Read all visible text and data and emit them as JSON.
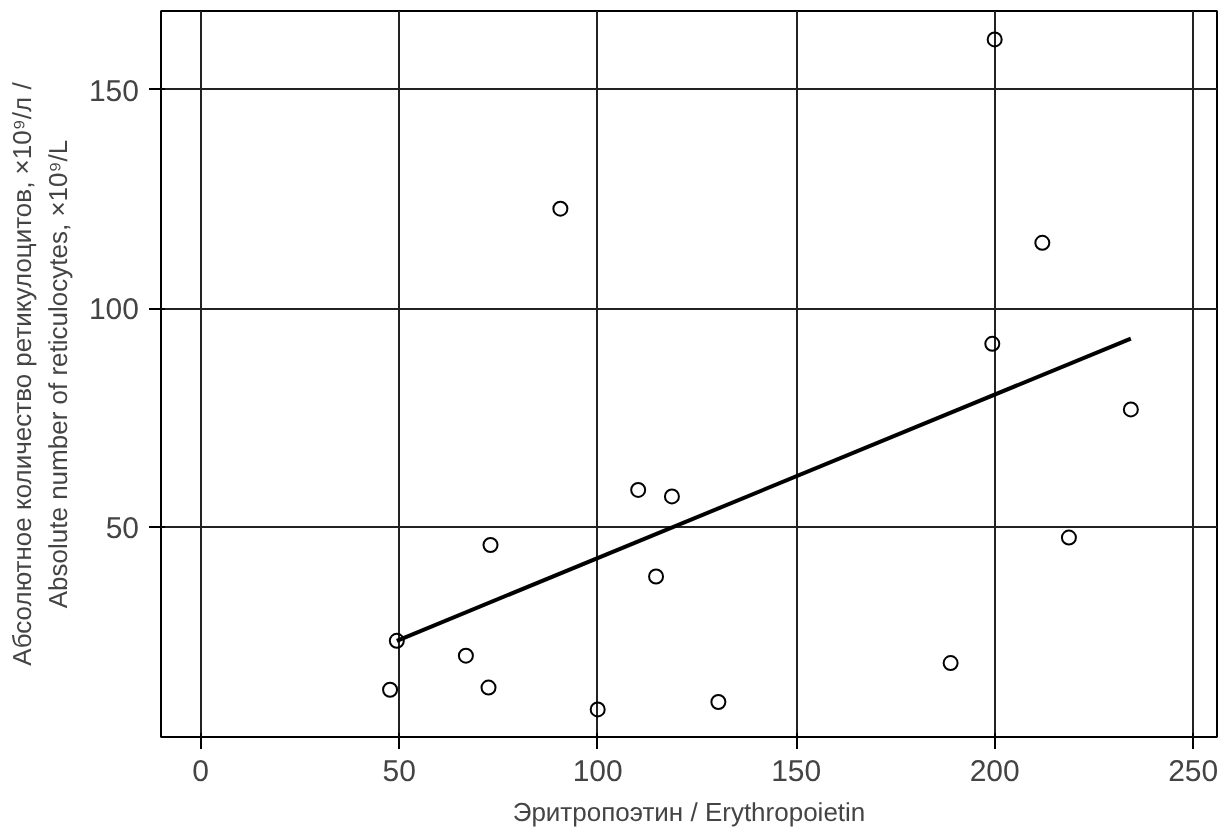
{
  "chart_data": {
    "type": "scatter",
    "xlabel": "Эритропоэтин / Erythropoietin",
    "ylabel": "Абсолютное количество ретикулоцитов, ×10⁹/л /\nAbsolute number of reticulocytes, ×10⁹/L",
    "xlim": [
      -10,
      256
    ],
    "ylim": [
      2,
      168
    ],
    "xticks": [
      0,
      50,
      100,
      150,
      200,
      250
    ],
    "yticks": [
      50,
      100,
      150
    ],
    "grid": true,
    "series": [
      {
        "marker": "circle",
        "color": "#000000",
        "x": [
          200,
          90.6,
          212,
          199.4,
          234.3,
          110.2,
          118.7,
          73,
          218.7,
          114.7,
          49.4,
          66.8,
          188.9,
          47.7,
          72.5,
          130.4,
          100
        ],
        "values": [
          161.5,
          122.8,
          115,
          91.9,
          76.9,
          58.5,
          57,
          45.9,
          47.6,
          38.7,
          24,
          20.6,
          18.9,
          12.8,
          13.3,
          10,
          8.3
        ]
      },
      {
        "type": "line",
        "marker": "none",
        "color": "#000000",
        "x": [
          49.4,
          234.3
        ],
        "values": [
          24,
          93.1
        ]
      }
    ]
  }
}
